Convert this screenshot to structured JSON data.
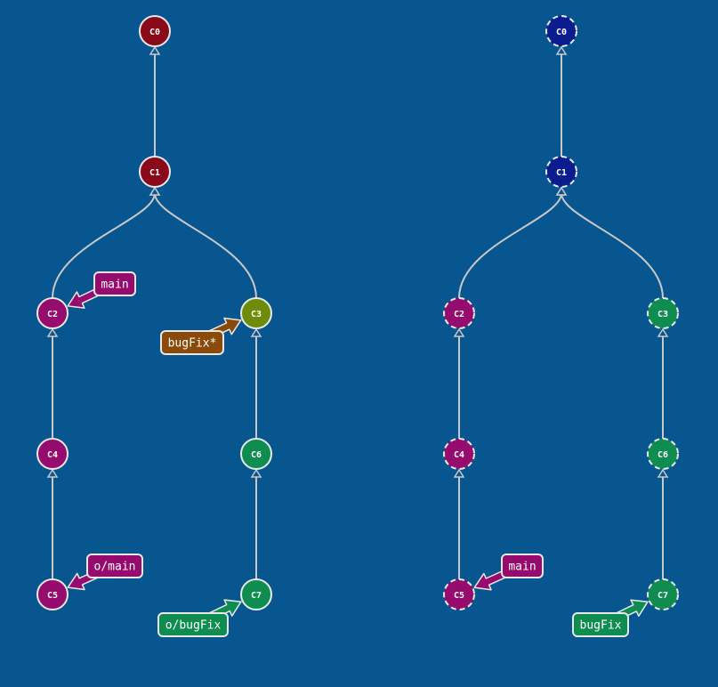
{
  "colors": {
    "background": "#07568f",
    "edge": "#c8c8c8",
    "node_stroke": "#e8e8e8",
    "red": "#8a0a1a",
    "magenta": "#960c6e",
    "olive": "#6e8c0a",
    "green": "#0f8c50",
    "brown": "#8a4a0a",
    "navy": "#0b1c8f"
  },
  "panels": [
    {
      "name": "local-repo",
      "commits": [
        {
          "id": "C0",
          "label": "C0",
          "color": "red",
          "dashed": false
        },
        {
          "id": "C1",
          "label": "C1",
          "color": "red",
          "dashed": false
        },
        {
          "id": "C2",
          "label": "C2",
          "color": "magenta",
          "dashed": false
        },
        {
          "id": "C3",
          "label": "C3",
          "color": "olive",
          "dashed": false
        },
        {
          "id": "C4",
          "label": "C4",
          "color": "magenta",
          "dashed": false
        },
        {
          "id": "C5",
          "label": "C5",
          "color": "magenta",
          "dashed": false
        },
        {
          "id": "C6",
          "label": "C6",
          "color": "green",
          "dashed": false
        },
        {
          "id": "C7",
          "label": "C7",
          "color": "green",
          "dashed": false
        }
      ],
      "edges": [
        {
          "from": "C1",
          "to": "C0"
        },
        {
          "from": "C2",
          "to": "C1"
        },
        {
          "from": "C3",
          "to": "C1"
        },
        {
          "from": "C4",
          "to": "C2"
        },
        {
          "from": "C5",
          "to": "C4"
        },
        {
          "from": "C6",
          "to": "C3"
        },
        {
          "from": "C7",
          "to": "C6"
        }
      ],
      "branches": [
        {
          "name": "main",
          "label": "main",
          "target": "C2",
          "color": "magenta"
        },
        {
          "name": "bugfix-head",
          "label": "bugFix*",
          "target": "C3",
          "color": "brown"
        },
        {
          "name": "o-main",
          "label": "o/main",
          "target": "C5",
          "color": "magenta"
        },
        {
          "name": "o-bugfix",
          "label": "o/bugFix",
          "target": "C7",
          "color": "green"
        }
      ]
    },
    {
      "name": "remote-repo",
      "commits": [
        {
          "id": "C0",
          "label": "C0",
          "color": "navy",
          "dashed": true
        },
        {
          "id": "C1",
          "label": "C1",
          "color": "navy",
          "dashed": true
        },
        {
          "id": "C2",
          "label": "C2",
          "color": "magenta",
          "dashed": true
        },
        {
          "id": "C3",
          "label": "C3",
          "color": "green",
          "dashed": true
        },
        {
          "id": "C4",
          "label": "C4",
          "color": "magenta",
          "dashed": true
        },
        {
          "id": "C5",
          "label": "C5",
          "color": "magenta",
          "dashed": true
        },
        {
          "id": "C6",
          "label": "C6",
          "color": "green",
          "dashed": true
        },
        {
          "id": "C7",
          "label": "C7",
          "color": "green",
          "dashed": true
        }
      ],
      "edges": [
        {
          "from": "C1",
          "to": "C0"
        },
        {
          "from": "C2",
          "to": "C1"
        },
        {
          "from": "C3",
          "to": "C1"
        },
        {
          "from": "C4",
          "to": "C2"
        },
        {
          "from": "C5",
          "to": "C4"
        },
        {
          "from": "C6",
          "to": "C3"
        },
        {
          "from": "C7",
          "to": "C6"
        }
      ],
      "branches": [
        {
          "name": "main",
          "label": "main",
          "target": "C5",
          "color": "magenta"
        },
        {
          "name": "bugfix",
          "label": "bugFix",
          "target": "C7",
          "color": "green"
        }
      ]
    }
  ]
}
